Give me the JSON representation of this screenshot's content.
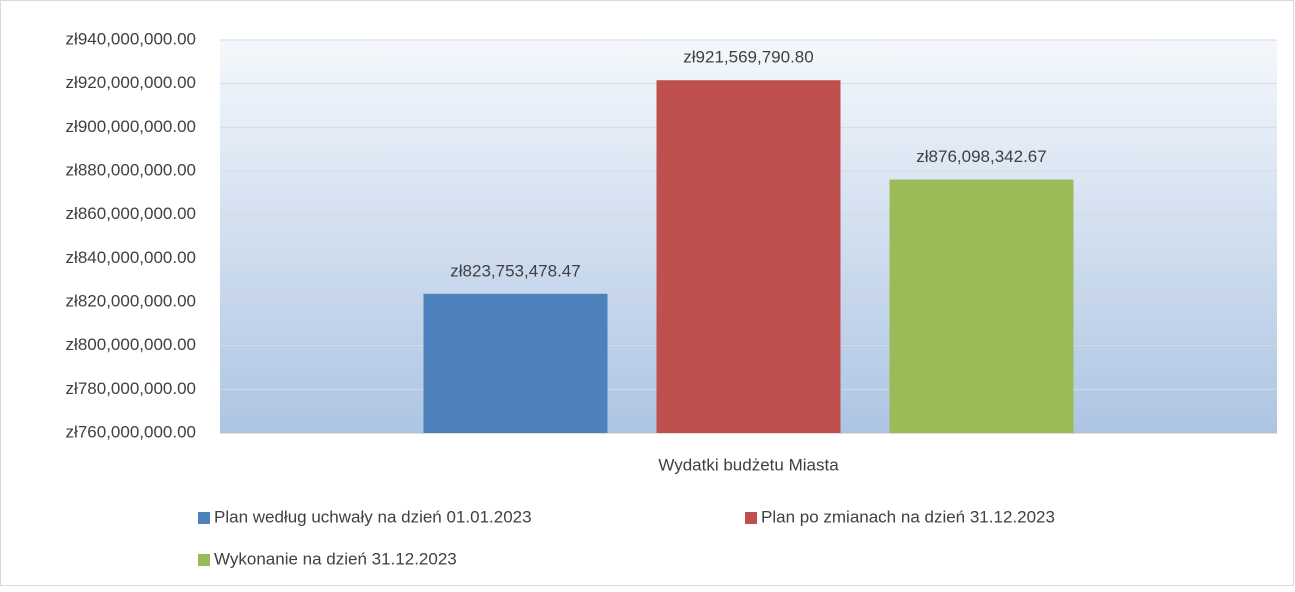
{
  "chart_data": {
    "type": "bar",
    "categories": [
      "Wydatki budżetu Miasta"
    ],
    "series": [
      {
        "name": "Plan według uchwały na dzień 01.01.2023",
        "color": "#4f81bd",
        "values": [
          823753478.47
        ],
        "value_labels": [
          "zł823,753,478.47"
        ]
      },
      {
        "name": "Plan po zmianach na dzień 31.12.2023",
        "color": "#c0504d",
        "values": [
          921569790.8
        ],
        "value_labels": [
          "zł921,569,790.80"
        ]
      },
      {
        "name": "Wykonanie na dzień 31.12.2023",
        "color": "#9bbb59",
        "values": [
          876098342.67
        ],
        "value_labels": [
          "zł876,098,342.67"
        ]
      }
    ],
    "ylim": [
      760000000,
      940000000
    ],
    "yticks": [
      {
        "value": 760000000,
        "label": "zł760,000,000.00"
      },
      {
        "value": 780000000,
        "label": "zł780,000,000.00"
      },
      {
        "value": 800000000,
        "label": "zł800,000,000.00"
      },
      {
        "value": 820000000,
        "label": "zł820,000,000.00"
      },
      {
        "value": 840000000,
        "label": "zł840,000,000.00"
      },
      {
        "value": 860000000,
        "label": "zł860,000,000.00"
      },
      {
        "value": 880000000,
        "label": "zł880,000,000.00"
      },
      {
        "value": 900000000,
        "label": "zł900,000,000.00"
      },
      {
        "value": 920000000,
        "label": "zł920,000,000.00"
      },
      {
        "value": 940000000,
        "label": "zł940,000,000.00"
      }
    ],
    "grid": true,
    "legend": "bottom"
  }
}
